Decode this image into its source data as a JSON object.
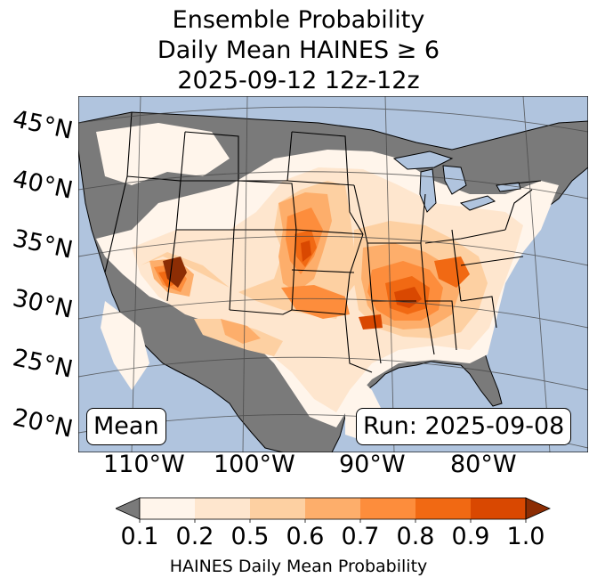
{
  "title": {
    "line1": "Ensemble Probability",
    "line2": "Daily Mean HAINES ≥ 6",
    "line3": "2025-09-12 12z-12z"
  },
  "map": {
    "panel_label": "Mean",
    "run_label": "Run: 2025-09-08",
    "lat_labels": [
      "45°N",
      "40°N",
      "35°N",
      "30°N",
      "25°N",
      "20°N"
    ],
    "lon_labels": [
      "110°W",
      "100°W",
      "90°W",
      "80°W"
    ],
    "colors": {
      "ocean": "#b0c4de",
      "nodata": "#7a7a7a",
      "p01": "#fff5eb",
      "p02": "#fee6ce",
      "p05": "#fdd0a2",
      "p06": "#fdae6b",
      "p07": "#fd8d3c",
      "p08": "#f16913",
      "p09": "#d94801",
      "p10": "#8c2d04"
    }
  },
  "colorbar": {
    "ticks": [
      "0.1",
      "0.2",
      "0.5",
      "0.6",
      "0.7",
      "0.8",
      "0.9",
      "1.0"
    ],
    "label": "HAINES Daily Mean Probability",
    "under_color": "#7a7a7a",
    "over_color": "#8c2d04",
    "bin_colors": [
      "#fff5eb",
      "#fee6ce",
      "#fdd0a2",
      "#fdae6b",
      "#fd8d3c",
      "#f16913",
      "#d94801"
    ]
  }
}
